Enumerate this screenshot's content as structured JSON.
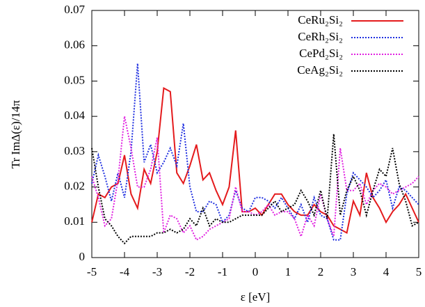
{
  "chart_data": {
    "type": "line",
    "xlabel": "ε [eV]",
    "ylabel": "Tr ImΔ(ε)/14π",
    "xlim": [
      -5,
      5
    ],
    "xticks": [
      -5,
      -4,
      -3,
      -2,
      -1,
      0,
      1,
      2,
      3,
      4,
      5
    ],
    "ylim": [
      0,
      0.07
    ],
    "yticks": [
      0,
      0.01,
      0.02,
      0.03,
      0.04,
      0.05,
      0.06,
      0.07
    ],
    "legend": "top-right",
    "x": [
      -5,
      -4.8,
      -4.6,
      -4.4,
      -4.2,
      -4,
      -3.8,
      -3.6,
      -3.4,
      -3.2,
      -3,
      -2.8,
      -2.6,
      -2.4,
      -2.2,
      -2,
      -1.8,
      -1.6,
      -1.4,
      -1.2,
      -1,
      -0.8,
      -0.6,
      -0.4,
      -0.2,
      0,
      0.2,
      0.4,
      0.6,
      0.8,
      1,
      1.2,
      1.4,
      1.6,
      1.8,
      2,
      2.2,
      2.4,
      2.6,
      2.8,
      3,
      3.2,
      3.4,
      3.6,
      3.8,
      4,
      4.2,
      4.4,
      4.6,
      4.8,
      5
    ],
    "series": [
      {
        "name": "CeRu₂Si₂",
        "color": "#e41a1c",
        "dash": "solid",
        "values": [
          0.01,
          0.018,
          0.017,
          0.02,
          0.021,
          0.029,
          0.018,
          0.014,
          0.025,
          0.021,
          0.03,
          0.048,
          0.047,
          0.024,
          0.021,
          0.026,
          0.032,
          0.022,
          0.024,
          0.019,
          0.015,
          0.02,
          0.036,
          0.013,
          0.013,
          0.014,
          0.012,
          0.015,
          0.018,
          0.018,
          0.015,
          0.013,
          0.012,
          0.012,
          0.015,
          0.013,
          0.012,
          0.009,
          0.008,
          0.007,
          0.016,
          0.012,
          0.024,
          0.017,
          0.014,
          0.01,
          0.013,
          0.015,
          0.018,
          0.014,
          0.01
        ]
      },
      {
        "name": "CeRh₂Si₂",
        "color": "#1f2fe0",
        "dash": "dotted",
        "values": [
          0.021,
          0.029,
          0.023,
          0.016,
          0.024,
          0.017,
          0.03,
          0.055,
          0.027,
          0.032,
          0.024,
          0.027,
          0.031,
          0.026,
          0.038,
          0.02,
          0.013,
          0.013,
          0.016,
          0.015,
          0.01,
          0.012,
          0.019,
          0.014,
          0.013,
          0.017,
          0.017,
          0.016,
          0.014,
          0.017,
          0.014,
          0.011,
          0.015,
          0.01,
          0.017,
          0.012,
          0.011,
          0.005,
          0.005,
          0.018,
          0.024,
          0.022,
          0.02,
          0.017,
          0.019,
          0.022,
          0.014,
          0.02,
          0.019,
          0.017,
          0.015
        ]
      },
      {
        "name": "CePd₂Si₂",
        "color": "#e020e0",
        "dash": "dotted",
        "values": [
          0.023,
          0.017,
          0.009,
          0.011,
          0.022,
          0.04,
          0.031,
          0.02,
          0.02,
          0.025,
          0.034,
          0.007,
          0.012,
          0.011,
          0.007,
          0.009,
          0.005,
          0.006,
          0.008,
          0.009,
          0.01,
          0.011,
          0.02,
          0.013,
          0.013,
          0.012,
          0.013,
          0.015,
          0.012,
          0.013,
          0.013,
          0.011,
          0.006,
          0.012,
          0.009,
          0.018,
          0.011,
          0.006,
          0.031,
          0.019,
          0.019,
          0.021,
          0.015,
          0.019,
          0.021,
          0.02,
          0.018,
          0.019,
          0.02,
          0.021,
          0.023
        ]
      },
      {
        "name": "CeAg₂Si₂",
        "color": "#000000",
        "dash": "dotted",
        "values": [
          0.031,
          0.02,
          0.011,
          0.009,
          0.006,
          0.004,
          0.006,
          0.006,
          0.006,
          0.006,
          0.007,
          0.007,
          0.008,
          0.007,
          0.008,
          0.011,
          0.009,
          0.014,
          0.009,
          0.011,
          0.01,
          0.01,
          0.011,
          0.012,
          0.012,
          0.012,
          0.012,
          0.014,
          0.016,
          0.013,
          0.014,
          0.015,
          0.019,
          0.016,
          0.012,
          0.019,
          0.011,
          0.035,
          0.012,
          0.019,
          0.023,
          0.019,
          0.012,
          0.019,
          0.025,
          0.023,
          0.031,
          0.021,
          0.016,
          0.009,
          0.01
        ]
      }
    ]
  }
}
